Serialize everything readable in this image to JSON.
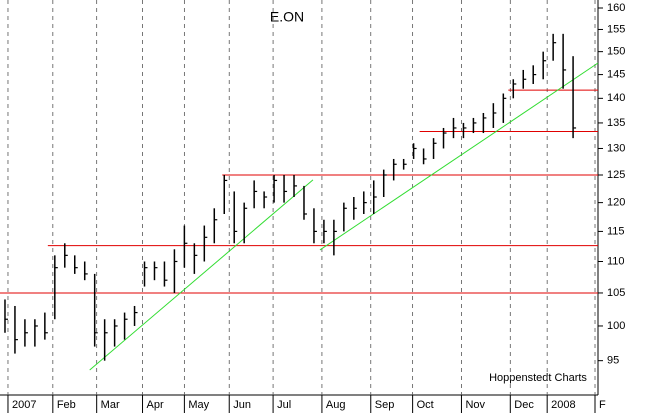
{
  "chart_data": {
    "type": "ohlc",
    "title": "E.ON",
    "source": "Hoppenstedt Charts",
    "log_scale": true,
    "grid": "vertical-dashed",
    "color": "#000000",
    "xlim": [
      0,
      60
    ],
    "xticks": [
      {
        "value": 0.8,
        "label": "2007"
      },
      {
        "value": 5.3,
        "label": "Feb"
      },
      {
        "value": 9.7,
        "label": "Mar"
      },
      {
        "value": 14.3,
        "label": "Apr"
      },
      {
        "value": 18.5,
        "label": "May"
      },
      {
        "value": 23,
        "label": "Jun"
      },
      {
        "value": 27.4,
        "label": "Jul"
      },
      {
        "value": 32.3,
        "label": "Aug"
      },
      {
        "value": 37.2,
        "label": "Sep"
      },
      {
        "value": 41.4,
        "label": "Oct"
      },
      {
        "value": 46.3,
        "label": "Nov"
      },
      {
        "value": 51.2,
        "label": "Dec"
      },
      {
        "value": 54.9,
        "label": "2008"
      },
      {
        "value": 59.7,
        "label": "F"
      }
    ],
    "ylim": [
      90.3,
      161.9
    ],
    "yticks": [
      95,
      100,
      105,
      110,
      115,
      120,
      125,
      130,
      135,
      140,
      145,
      150,
      155,
      160
    ],
    "high": [
      104,
      103,
      101,
      101,
      102,
      111,
      113,
      111,
      110,
      108,
      101,
      101,
      102,
      103,
      110,
      110,
      110,
      112,
      116,
      113,
      116,
      119,
      125,
      122,
      120,
      124,
      122,
      125,
      125,
      125,
      123,
      119,
      117,
      117,
      120,
      121,
      122,
      124,
      126,
      128,
      128,
      131,
      130,
      132,
      134,
      136,
      135,
      136,
      137,
      139,
      141,
      144,
      146,
      147,
      150,
      154,
      154,
      149
    ],
    "low": [
      99,
      96,
      97,
      97,
      98,
      101,
      109,
      108,
      107,
      97,
      95,
      97,
      98,
      100,
      106,
      107,
      106,
      105,
      109,
      108,
      110,
      113,
      118,
      113,
      113,
      119,
      119,
      120,
      120,
      121,
      117,
      113,
      113,
      111,
      115,
      117,
      118,
      118,
      121,
      124,
      126,
      128,
      127,
      128,
      130,
      132,
      132,
      133,
      133,
      134,
      135,
      140,
      142,
      143,
      144,
      148,
      142,
      132
    ],
    "close": [
      101,
      98,
      99,
      100,
      99,
      109,
      111,
      109,
      108,
      99,
      99,
      100,
      101,
      102,
      109,
      109,
      107,
      110,
      113,
      111,
      114,
      117,
      124,
      115,
      119,
      122,
      121,
      124,
      122,
      123,
      118,
      115,
      115,
      115,
      119,
      119,
      120,
      121,
      125,
      127,
      127,
      130,
      128,
      131,
      133,
      134,
      134,
      135,
      136,
      137,
      140,
      143,
      144,
      145,
      148,
      152,
      146,
      134
    ],
    "hlines": {
      "color": "#e00000",
      "values": [
        105,
        112.6,
        125,
        133.3,
        141.7
      ],
      "start": [
        0,
        4.8,
        22.3,
        42.1,
        51
      ]
    },
    "trendlines": {
      "color": "#33dd33",
      "x": [
        [
          9,
          31.4
        ],
        [
          32.1,
          60
        ]
      ],
      "y": [
        [
          93.7,
          124.1
        ],
        [
          111.9,
          147.5
        ]
      ]
    }
  }
}
